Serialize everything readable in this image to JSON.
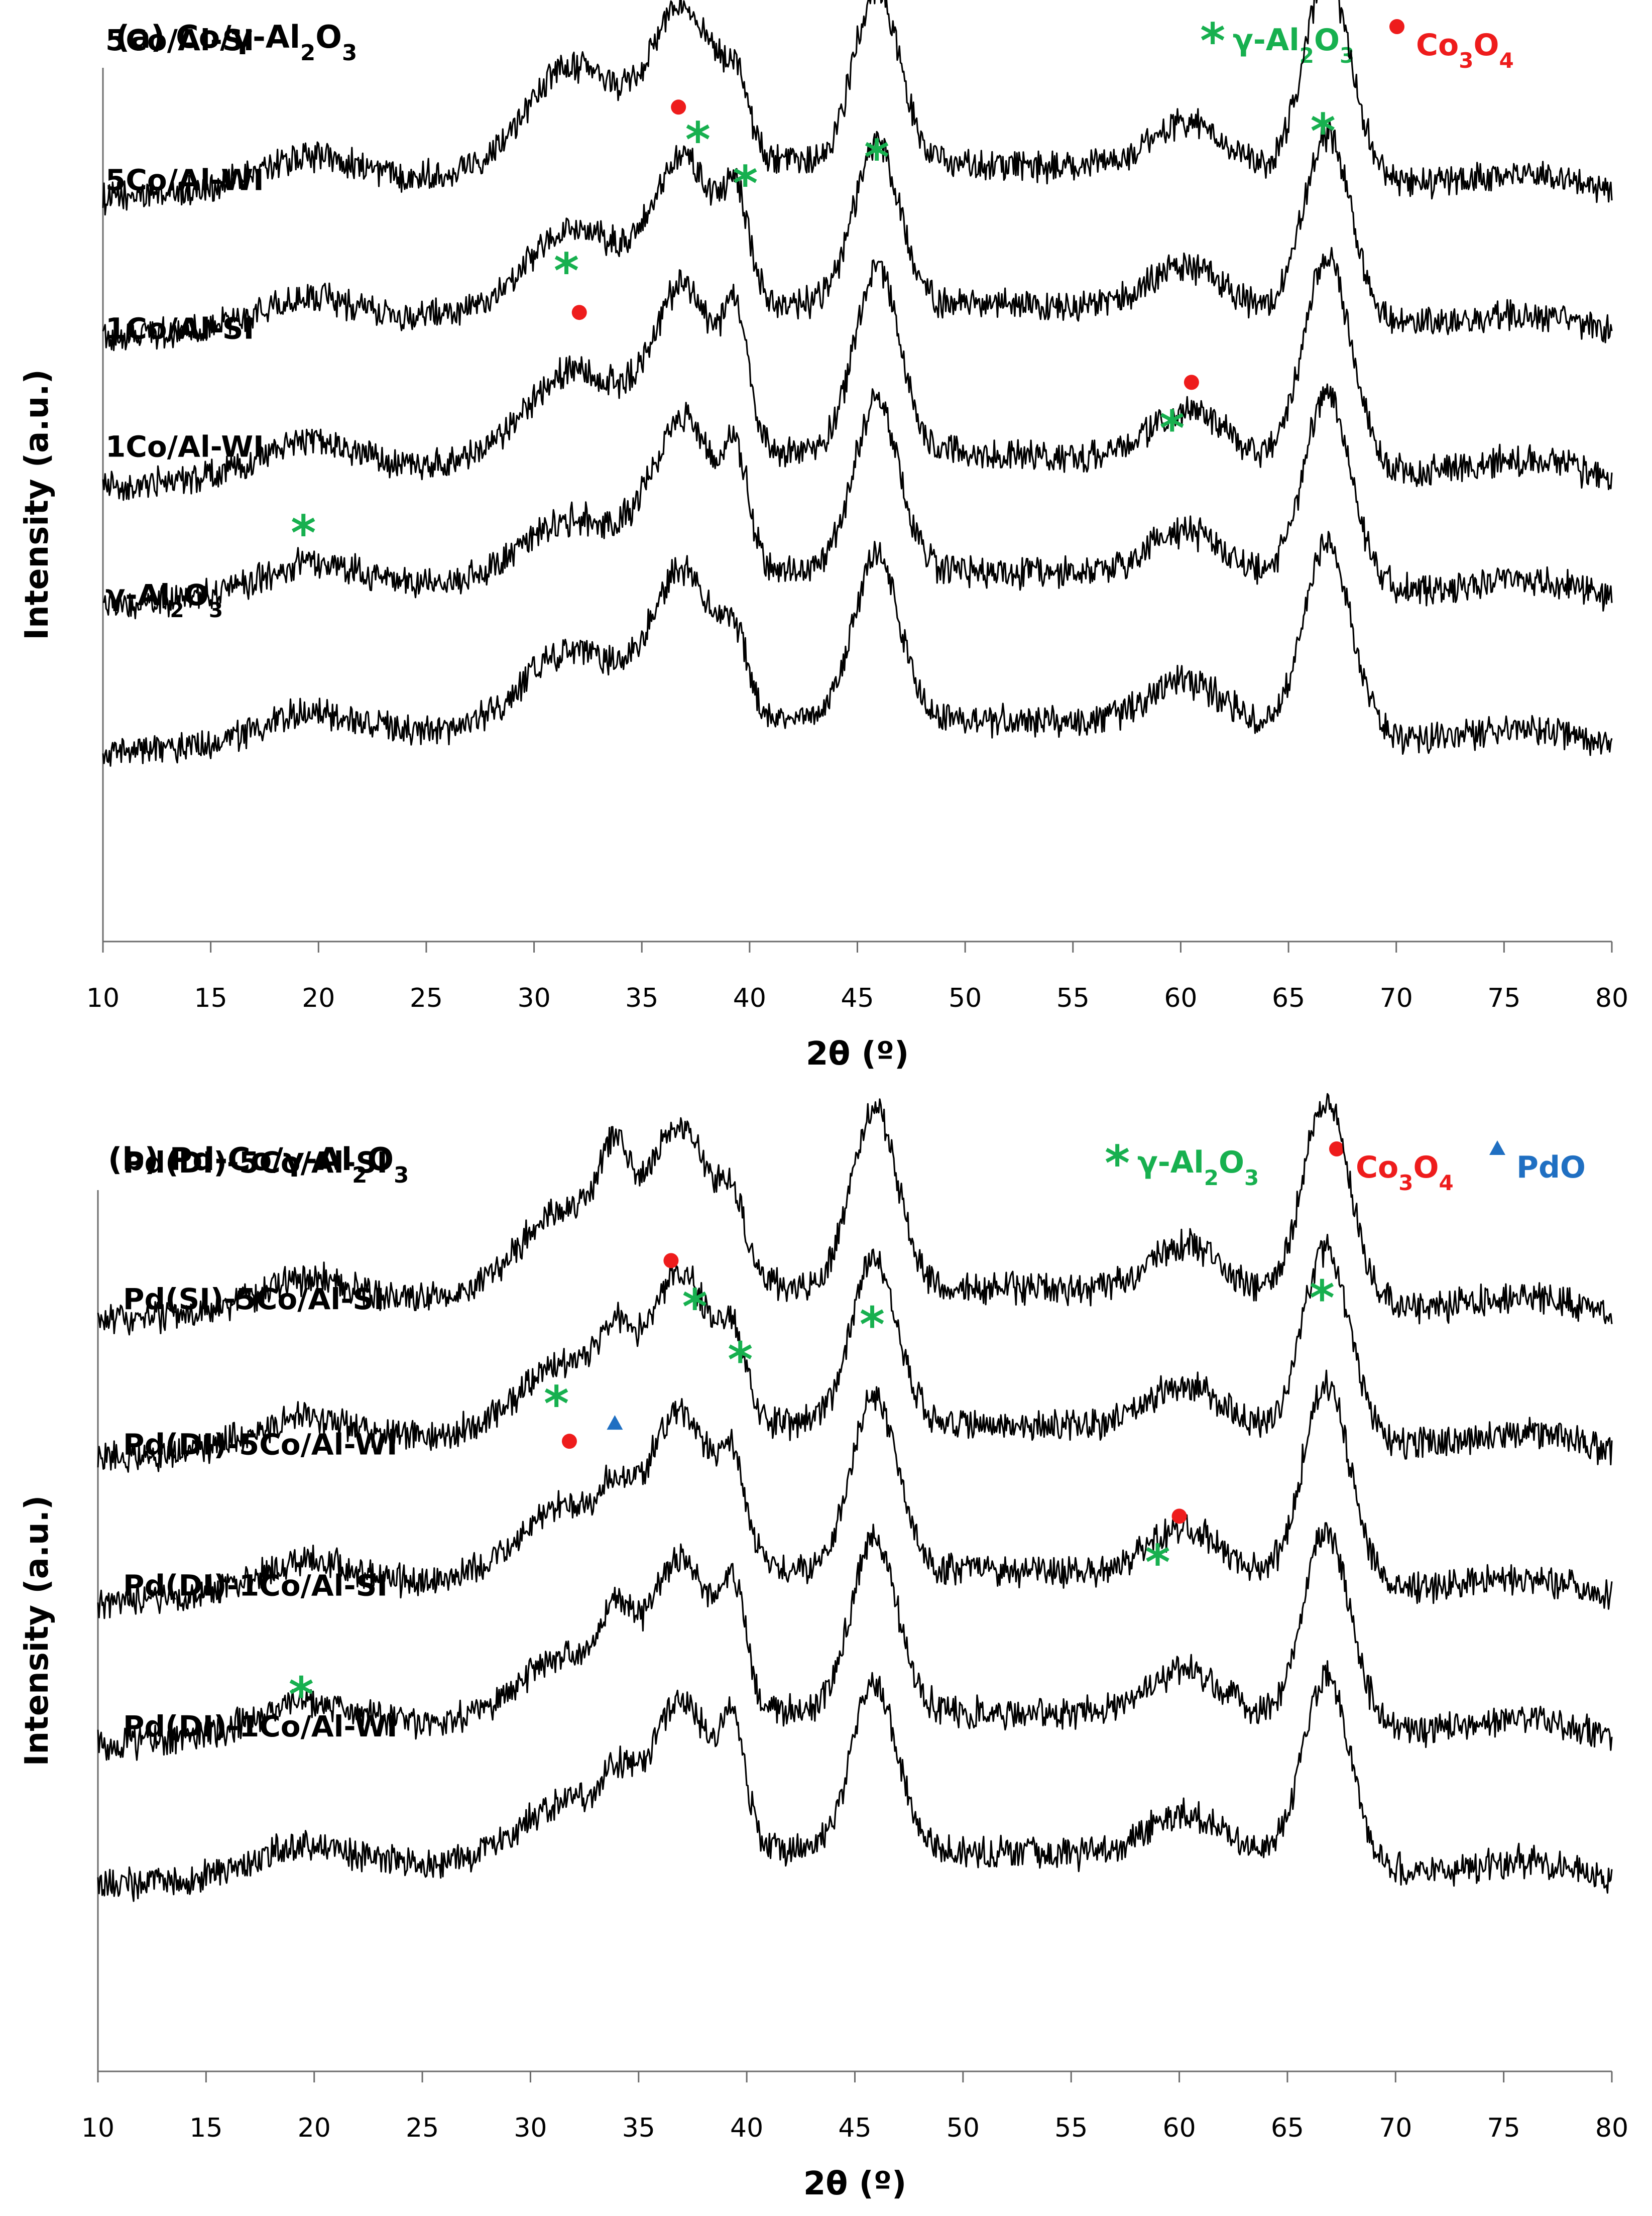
{
  "colors": {
    "gamma_al2o3": "#17b04f",
    "co3o4": "#ee1c1c",
    "pdo": "#1f6fc2",
    "trace": "#000000"
  },
  "chart_data": [
    {
      "type": "line",
      "panel": "a",
      "title": "(a) Co/γ-Al2O3",
      "title_parts": {
        "prefix": "(a) Co/γ-Al",
        "sub1": "2",
        "mid": "O",
        "sub2": "3"
      },
      "xlabel": "2θ (º)",
      "ylabel": "Intensity (a.u.)",
      "xlim": [
        10,
        80
      ],
      "x_ticks": [
        10,
        15,
        20,
        25,
        30,
        35,
        40,
        45,
        50,
        55,
        60,
        65,
        70,
        75,
        80
      ],
      "legend": [
        {
          "symbol": "star",
          "color_key": "gamma_al2o3",
          "text": "γ-Al2O3",
          "parts": {
            "a": "γ-Al",
            "s1": "2",
            "b": "O",
            "s2": "3"
          }
        },
        {
          "symbol": "circle",
          "color_key": "co3o4",
          "text": "Co3O4",
          "parts": {
            "a": "Co",
            "s1": "3",
            "b": "O",
            "s2": "4"
          }
        }
      ],
      "series": [
        {
          "name": "5Co/Al-SI",
          "parts": {
            "a": "5Co/Al-SI"
          },
          "baseline": 0.305,
          "amp": 0.23,
          "p30": 1.55,
          "pPdO": 0.0,
          "p39": 0.95,
          "pSlope": 0.15
        },
        {
          "name": "5Co/Al-WI",
          "parts": {
            "a": "5Co/Al-WI"
          },
          "baseline": 0.145,
          "amp": 0.21,
          "p30": 1.3,
          "pPdO": 0.0,
          "p39": 1.55,
          "pSlope": 0.12
        },
        {
          "name": "1Co/Al-SI",
          "parts": {
            "a": "1Co/Al-SI"
          },
          "baseline": -0.025,
          "amp": 0.24,
          "p30": 1.25,
          "pPdO": 0.0,
          "p39": 1.7,
          "pSlope": 0.12
        },
        {
          "name": "1Co/Al-WI",
          "parts": {
            "a": "1Co/Al-WI"
          },
          "baseline": -0.16,
          "amp": 0.22,
          "p30": 0.9,
          "pPdO": 0.0,
          "p39": 1.55,
          "pSlope": 0.1
        },
        {
          "name": "γ-Al2O3",
          "parts": {
            "a": "γ-Al",
            "s1": "2",
            "b": "O",
            "s2": "3"
          },
          "baseline": -0.33,
          "amp": 0.215,
          "p30": 1.2,
          "pPdO": 0.0,
          "p39": 1.0,
          "pSlope": 0.12
        }
      ],
      "phase_markers": [
        {
          "phase": "γ-Al2O3",
          "symbol": "star",
          "x": 19.3,
          "y": 0.47
        },
        {
          "phase": "γ-Al2O3",
          "symbol": "star",
          "x": 31.5,
          "y": 0.77
        },
        {
          "phase": "Co3O4",
          "symbol": "circle",
          "x": 32.1,
          "y": 0.72
        },
        {
          "phase": "Co3O4",
          "symbol": "circle",
          "x": 36.7,
          "y": 0.955
        },
        {
          "phase": "γ-Al2O3",
          "symbol": "star",
          "x": 37.6,
          "y": 0.92
        },
        {
          "phase": "γ-Al2O3",
          "symbol": "star",
          "x": 39.8,
          "y": 0.87
        },
        {
          "phase": "γ-Al2O3",
          "symbol": "star",
          "x": 45.9,
          "y": 0.9
        },
        {
          "phase": "Co3O4",
          "symbol": "circle",
          "x": 60.5,
          "y": 0.64
        },
        {
          "phase": "γ-Al2O3",
          "symbol": "star",
          "x": 59.6,
          "y": 0.59
        },
        {
          "phase": "γ-Al2O3",
          "symbol": "star",
          "x": 66.6,
          "y": 0.93
        }
      ]
    },
    {
      "type": "line",
      "panel": "b",
      "title": "(b) Pd-Co/γ-Al2O3",
      "title_parts": {
        "prefix": "(b) Pd-Co/γ-Al",
        "sub1": "2",
        "mid": "O",
        "sub2": "3"
      },
      "xlabel": "2θ (º)",
      "ylabel": "Intensity (a.u.)",
      "xlim": [
        10,
        80
      ],
      "x_ticks": [
        10,
        15,
        20,
        25,
        30,
        35,
        40,
        45,
        50,
        55,
        60,
        65,
        70,
        75,
        80
      ],
      "legend": [
        {
          "symbol": "star",
          "color_key": "gamma_al2o3",
          "text": "γ-Al2O3",
          "parts": {
            "a": "γ-Al",
            "s1": "2",
            "b": "O",
            "s2": "3"
          }
        },
        {
          "symbol": "circle",
          "color_key": "co3o4",
          "text": "Co3O4",
          "parts": {
            "a": "Co",
            "s1": "3",
            "b": "O",
            "s2": "4"
          }
        },
        {
          "symbol": "triangle",
          "color_key": "pdo",
          "text": "PdO",
          "parts": {
            "a": "PdO"
          }
        }
      ],
      "series": [
        {
          "name": "Pd(DI)-5Co/Al-SI",
          "parts": {
            "a": "Pd(DI)-5Co/Al-SI"
          },
          "baseline": 0.305,
          "amp": 0.23,
          "p30": 1.3,
          "pPdO": 1.3,
          "p39": 0.95,
          "pSlope": 0.15
        },
        {
          "name": "Pd(SI)-5Co/Al-SI",
          "parts": {
            "a": "Pd(SI)-5Co/Al-SI"
          },
          "baseline": 0.15,
          "amp": 0.215,
          "p30": 1.1,
          "pPdO": 0.8,
          "p39": 1.05,
          "pSlope": 0.13
        },
        {
          "name": "Pd(DI)-5Co/Al-WI",
          "parts": {
            "a": "Pd(DI)-5Co/Al-WI"
          },
          "baseline": -0.015,
          "amp": 0.225,
          "p30": 1.05,
          "pPdO": 0.6,
          "p39": 1.35,
          "pSlope": 0.13
        },
        {
          "name": "Pd(DI)-1Co/Al-SI",
          "parts": {
            "a": "Pd(DI)-1Co/Al-SI"
          },
          "baseline": -0.175,
          "amp": 0.22,
          "p30": 0.95,
          "pPdO": 1.0,
          "p39": 1.6,
          "pSlope": 0.1
        },
        {
          "name": "Pd(DI)-1Co/Al-WI",
          "parts": {
            "a": "Pd(DI)-1Co/Al-WI"
          },
          "baseline": -0.335,
          "amp": 0.215,
          "p30": 0.9,
          "pPdO": 0.65,
          "p39": 1.75,
          "pSlope": 0.12
        }
      ],
      "phase_markers": [
        {
          "phase": "γ-Al2O3",
          "symbol": "star",
          "x": 19.4,
          "y": 0.43
        },
        {
          "phase": "γ-Al2O3",
          "symbol": "star",
          "x": 31.2,
          "y": 0.76
        },
        {
          "phase": "Co3O4",
          "symbol": "circle",
          "x": 31.8,
          "y": 0.715
        },
        {
          "phase": "PdO",
          "symbol": "triangle",
          "x": 33.9,
          "y": 0.735
        },
        {
          "phase": "Co3O4",
          "symbol": "circle",
          "x": 36.5,
          "y": 0.92
        },
        {
          "phase": "γ-Al2O3",
          "symbol": "star",
          "x": 37.6,
          "y": 0.87
        },
        {
          "phase": "γ-Al2O3",
          "symbol": "star",
          "x": 39.7,
          "y": 0.81
        },
        {
          "phase": "γ-Al2O3",
          "symbol": "star",
          "x": 45.8,
          "y": 0.85
        },
        {
          "phase": "Co3O4",
          "symbol": "circle",
          "x": 60.0,
          "y": 0.63
        },
        {
          "phase": "γ-Al2O3",
          "symbol": "star",
          "x": 59.0,
          "y": 0.58
        },
        {
          "phase": "γ-Al2O3",
          "symbol": "star",
          "x": 66.6,
          "y": 0.88
        }
      ]
    }
  ]
}
